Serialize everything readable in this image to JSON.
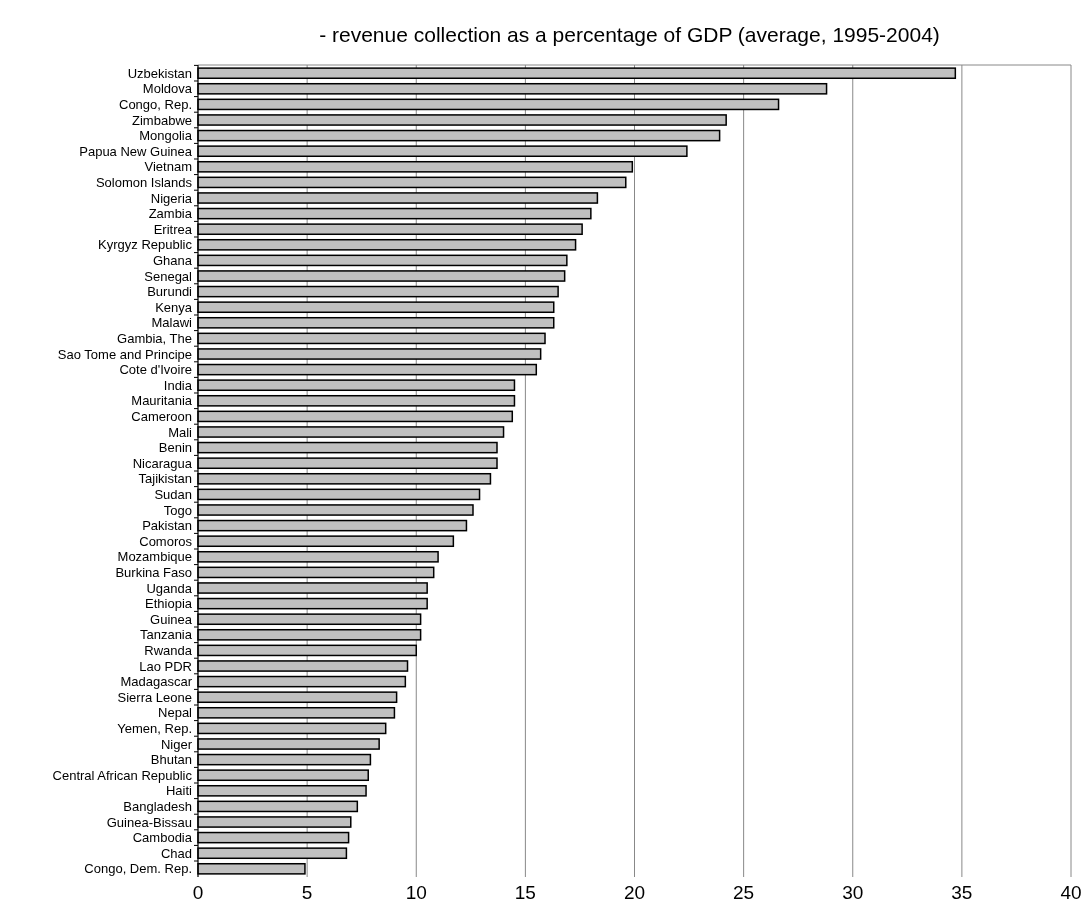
{
  "chart_data": {
    "type": "bar",
    "orientation": "horizontal",
    "title": "- revenue collection as a percentage of GDP (average, 1995-2004)",
    "categories": [
      "Uzbekistan",
      "Moldova",
      "Congo, Rep.",
      "Zimbabwe",
      "Mongolia",
      "Papua New Guinea",
      "Vietnam",
      "Solomon Islands",
      "Nigeria",
      "Zambia",
      "Eritrea",
      "Kyrgyz Republic",
      "Ghana",
      "Senegal",
      "Burundi",
      "Kenya",
      "Malawi",
      "Gambia, The",
      "Sao Tome and Principe",
      "Cote d'Ivoire",
      "India",
      "Mauritania",
      "Cameroon",
      "Mali",
      "Benin",
      "Nicaragua",
      "Tajikistan",
      "Sudan",
      "Togo",
      "Pakistan",
      "Comoros",
      "Mozambique",
      "Burkina Faso",
      "Uganda",
      "Ethiopia",
      "Guinea",
      "Tanzania",
      "Rwanda",
      "Lao PDR",
      "Madagascar",
      "Sierra Leone",
      "Nepal",
      "Yemen, Rep.",
      "Niger",
      "Bhutan",
      "Central African Republic",
      "Haiti",
      "Bangladesh",
      "Guinea-Bissau",
      "Cambodia",
      "Chad",
      "Congo, Dem. Rep."
    ],
    "values": [
      34.7,
      28.8,
      26.6,
      24.2,
      23.9,
      22.4,
      19.9,
      19.6,
      18.3,
      18.0,
      17.6,
      17.3,
      16.9,
      16.8,
      16.5,
      16.3,
      16.3,
      15.9,
      15.7,
      15.5,
      14.5,
      14.5,
      14.4,
      14.0,
      13.7,
      13.7,
      13.4,
      12.9,
      12.6,
      12.3,
      11.7,
      11.0,
      10.8,
      10.5,
      10.5,
      10.2,
      10.2,
      10.0,
      9.6,
      9.5,
      9.1,
      9.0,
      8.6,
      8.3,
      7.9,
      7.8,
      7.7,
      7.3,
      7.0,
      6.9,
      6.8,
      4.9
    ],
    "color": "#c0c0c0",
    "xlim": [
      0,
      40
    ],
    "xticks": [
      0,
      5,
      10,
      15,
      20,
      25,
      30,
      35,
      40
    ],
    "grid": "x"
  }
}
